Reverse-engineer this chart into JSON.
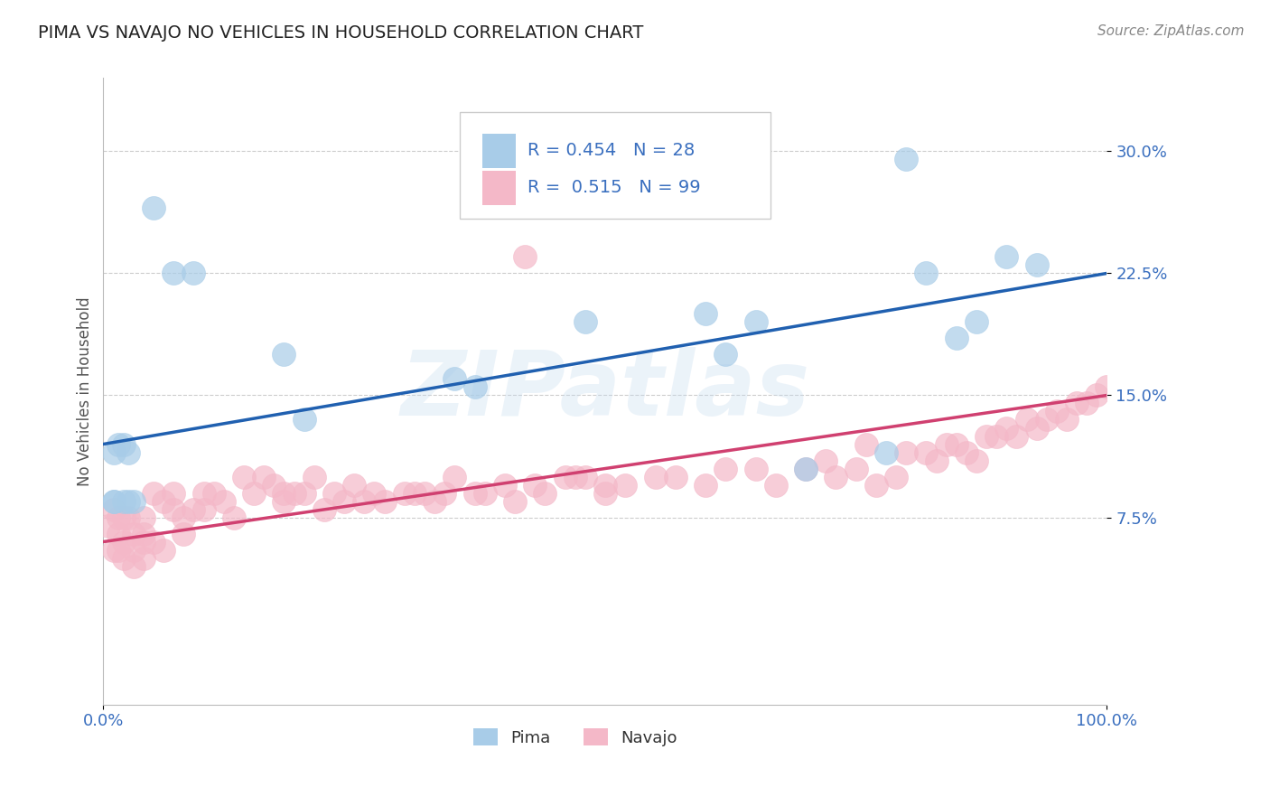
{
  "title": "PIMA VS NAVAJO NO VEHICLES IN HOUSEHOLD CORRELATION CHART",
  "source": "Source: ZipAtlas.com",
  "ylabel": "No Vehicles in Household",
  "ytick_values": [
    0.075,
    0.15,
    0.225,
    0.3
  ],
  "ytick_labels": [
    "7.5%",
    "15.0%",
    "22.5%",
    "30.0%"
  ],
  "xlim": [
    0.0,
    1.0
  ],
  "ylim": [
    -0.04,
    0.345
  ],
  "pima_R": 0.454,
  "pima_N": 28,
  "navajo_R": 0.515,
  "navajo_N": 99,
  "pima_color": "#a8cce8",
  "navajo_color": "#f4b8c8",
  "pima_line_color": "#2060b0",
  "navajo_line_color": "#d04070",
  "pima_scatter_x": [
    0.05,
    0.07,
    0.09,
    0.01,
    0.015,
    0.02,
    0.025,
    0.02,
    0.025,
    0.03,
    0.01,
    0.01,
    0.18,
    0.2,
    0.35,
    0.37,
    0.48,
    0.6,
    0.62,
    0.65,
    0.7,
    0.78,
    0.8,
    0.82,
    0.85,
    0.87,
    0.9,
    0.93
  ],
  "pima_scatter_y": [
    0.265,
    0.225,
    0.225,
    0.115,
    0.12,
    0.12,
    0.115,
    0.085,
    0.085,
    0.085,
    0.085,
    0.085,
    0.175,
    0.135,
    0.16,
    0.155,
    0.195,
    0.2,
    0.175,
    0.195,
    0.105,
    0.115,
    0.295,
    0.225,
    0.185,
    0.195,
    0.235,
    0.23
  ],
  "navajo_scatter_x": [
    0.005,
    0.01,
    0.01,
    0.015,
    0.015,
    0.015,
    0.02,
    0.02,
    0.02,
    0.025,
    0.03,
    0.03,
    0.03,
    0.04,
    0.04,
    0.04,
    0.04,
    0.05,
    0.05,
    0.06,
    0.06,
    0.07,
    0.07,
    0.08,
    0.08,
    0.09,
    0.1,
    0.1,
    0.11,
    0.12,
    0.13,
    0.14,
    0.15,
    0.16,
    0.17,
    0.18,
    0.18,
    0.19,
    0.2,
    0.21,
    0.22,
    0.23,
    0.24,
    0.25,
    0.26,
    0.27,
    0.28,
    0.3,
    0.31,
    0.32,
    0.33,
    0.34,
    0.35,
    0.38,
    0.4,
    0.41,
    0.43,
    0.44,
    0.46,
    0.47,
    0.48,
    0.5,
    0.5,
    0.52,
    0.55,
    0.57,
    0.6,
    0.62,
    0.65,
    0.67,
    0.7,
    0.72,
    0.73,
    0.75,
    0.76,
    0.77,
    0.79,
    0.8,
    0.82,
    0.83,
    0.84,
    0.85,
    0.86,
    0.87,
    0.88,
    0.89,
    0.9,
    0.91,
    0.92,
    0.93,
    0.94,
    0.95,
    0.96,
    0.97,
    0.98,
    0.99,
    1.0,
    0.37,
    0.42
  ],
  "navajo_scatter_y": [
    0.07,
    0.08,
    0.055,
    0.075,
    0.065,
    0.055,
    0.075,
    0.06,
    0.05,
    0.075,
    0.065,
    0.055,
    0.045,
    0.075,
    0.065,
    0.06,
    0.05,
    0.09,
    0.06,
    0.085,
    0.055,
    0.09,
    0.08,
    0.075,
    0.065,
    0.08,
    0.09,
    0.08,
    0.09,
    0.085,
    0.075,
    0.1,
    0.09,
    0.1,
    0.095,
    0.09,
    0.085,
    0.09,
    0.09,
    0.1,
    0.08,
    0.09,
    0.085,
    0.095,
    0.085,
    0.09,
    0.085,
    0.09,
    0.09,
    0.09,
    0.085,
    0.09,
    0.1,
    0.09,
    0.095,
    0.085,
    0.095,
    0.09,
    0.1,
    0.1,
    0.1,
    0.095,
    0.09,
    0.095,
    0.1,
    0.1,
    0.095,
    0.105,
    0.105,
    0.095,
    0.105,
    0.11,
    0.1,
    0.105,
    0.12,
    0.095,
    0.1,
    0.115,
    0.115,
    0.11,
    0.12,
    0.12,
    0.115,
    0.11,
    0.125,
    0.125,
    0.13,
    0.125,
    0.135,
    0.13,
    0.135,
    0.14,
    0.135,
    0.145,
    0.145,
    0.15,
    0.155,
    0.09,
    0.235
  ],
  "watermark_text": "ZIPatlas",
  "legend_pima_label": "Pima",
  "legend_navajo_label": "Navajo",
  "pima_line_y0": 0.12,
  "pima_line_y1": 0.225,
  "navajo_line_y0": 0.06,
  "navajo_line_y1": 0.15
}
